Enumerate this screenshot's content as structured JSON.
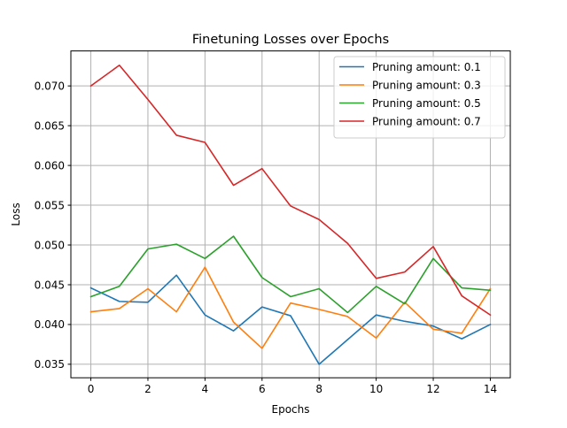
{
  "chart_data": {
    "type": "line",
    "title": "Finetuning Losses over Epochs",
    "xlabel": "Epochs",
    "ylabel": "Loss",
    "xlim": [
      -0.7,
      14.7
    ],
    "ylim": [
      0.0333,
      0.0744
    ],
    "xticks": [
      0,
      2,
      4,
      6,
      8,
      10,
      12,
      14
    ],
    "yticks": [
      0.035,
      0.04,
      0.045,
      0.05,
      0.055,
      0.06,
      0.065,
      0.07
    ],
    "ytick_labels": [
      "0.035",
      "0.040",
      "0.045",
      "0.050",
      "0.055",
      "0.060",
      "0.065",
      "0.070"
    ],
    "grid": true,
    "legend_position": "top-right",
    "x": [
      0,
      1,
      2,
      3,
      4,
      5,
      6,
      7,
      8,
      9,
      10,
      11,
      12,
      13,
      14
    ],
    "series": [
      {
        "name": "Pruning amount: 0.1",
        "color": "#1f77b4",
        "values": [
          0.0446,
          0.0429,
          0.0428,
          0.0462,
          0.0412,
          0.0392,
          0.0422,
          0.0411,
          0.035,
          0.0381,
          0.0412,
          0.0404,
          0.0398,
          0.0382,
          0.04
        ]
      },
      {
        "name": "Pruning amount: 0.3",
        "color": "#ff7f0e",
        "values": [
          0.0416,
          0.042,
          0.0445,
          0.0416,
          0.0472,
          0.0403,
          0.037,
          0.0427,
          0.0419,
          0.041,
          0.0383,
          0.0428,
          0.0394,
          0.0389,
          0.0445
        ]
      },
      {
        "name": "Pruning amount: 0.5",
        "color": "#2ca02c",
        "values": [
          0.0435,
          0.0448,
          0.0495,
          0.0501,
          0.0483,
          0.0511,
          0.0459,
          0.0435,
          0.0445,
          0.0415,
          0.0448,
          0.0426,
          0.0483,
          0.0446,
          0.0443
        ]
      },
      {
        "name": "Pruning amount: 0.7",
        "color": "#d62728",
        "values": [
          0.07,
          0.0726,
          0.0683,
          0.0638,
          0.0629,
          0.0575,
          0.0596,
          0.0549,
          0.0532,
          0.0502,
          0.0458,
          0.0466,
          0.0498,
          0.0436,
          0.0412
        ]
      }
    ]
  }
}
